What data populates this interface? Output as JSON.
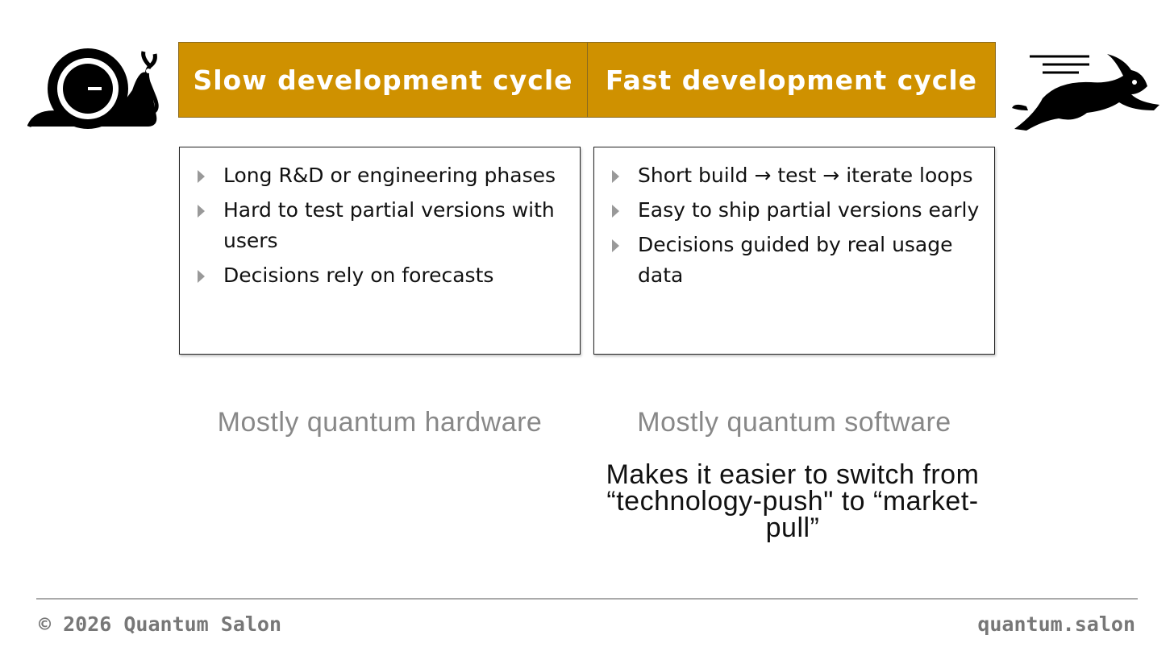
{
  "columns": [
    {
      "header": "Slow development cycle",
      "bullets": [
        "Long R&D or engineering phases",
        "Hard to test partial versions with users",
        "Decisions rely on forecasts"
      ],
      "caption": "Mostly quantum hardware"
    },
    {
      "header": "Fast development cycle",
      "bullets": [
        "Short build → test → iterate loops",
        "Easy to ship partial versions early",
        "Decisions guided by real usage data"
      ],
      "caption": "Mostly quantum software"
    }
  ],
  "note": "Makes it easier to switch from “technology-push\" to “market-pull”",
  "footer": {
    "left": "© 2026 Quantum Salon",
    "right": "quantum.salon"
  }
}
